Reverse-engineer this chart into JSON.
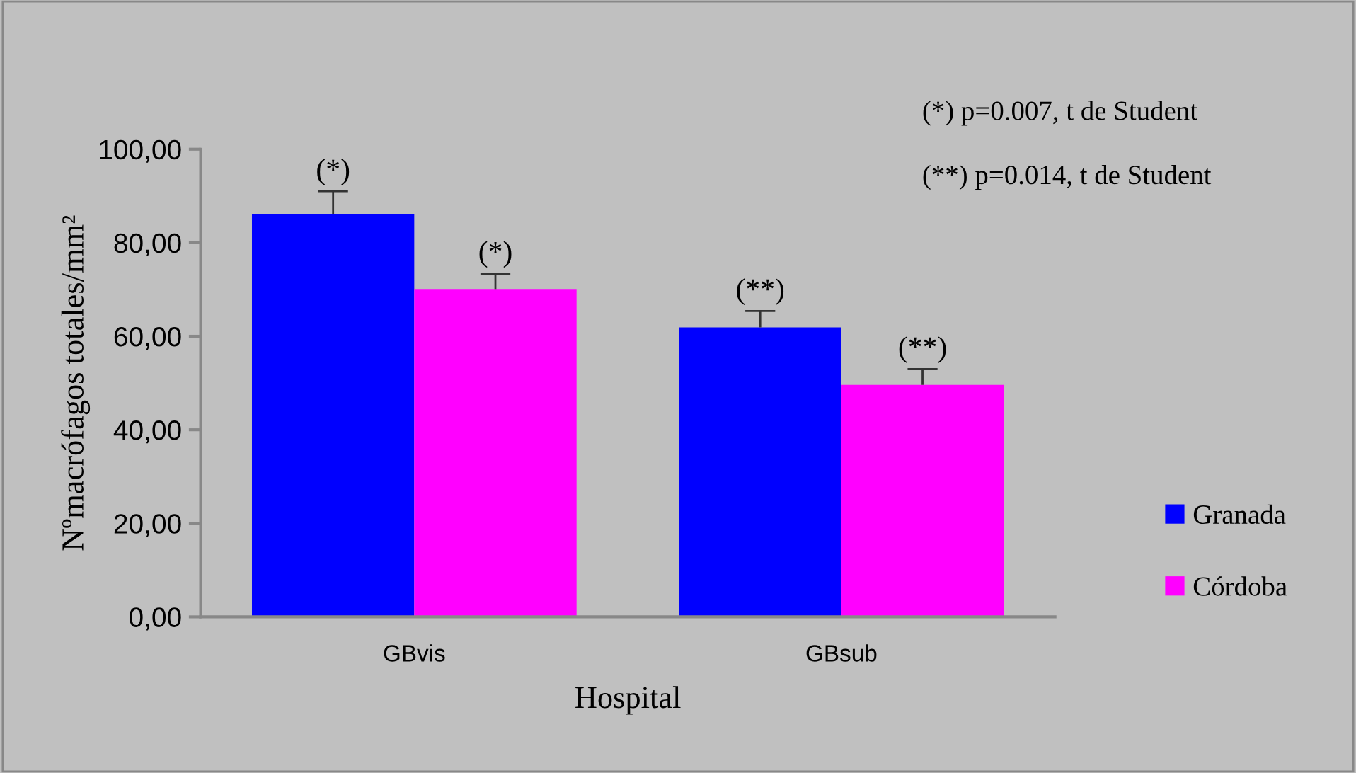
{
  "chart_data": {
    "type": "bar",
    "xlabel": "Hospital",
    "ylabel": "Nºmacrófagos totales/mm²",
    "categories": [
      "GBvis",
      "GBsub"
    ],
    "series": [
      {
        "name": "Granada",
        "color": "#0000ff",
        "values": [
          86.1,
          61.9
        ],
        "errors": [
          [
            86.1,
            91.0
          ],
          [
            61.9,
            65.4
          ]
        ]
      },
      {
        "name": "Córdoba",
        "color": "#ff00ff",
        "values": [
          70.1,
          49.6
        ],
        "errors": [
          [
            70.1,
            73.4
          ],
          [
            49.6,
            53.0
          ]
        ]
      }
    ],
    "ylim": [
      0,
      100
    ],
    "yticks": [
      {
        "value": 0,
        "label": "0,00"
      },
      {
        "value": 20,
        "label": "20,00"
      },
      {
        "value": 40,
        "label": "40,00"
      },
      {
        "value": 60,
        "label": "60,00"
      },
      {
        "value": 80,
        "label": "80,00"
      },
      {
        "value": 100,
        "label": "100,00"
      }
    ],
    "annotations": [
      "(*)",
      "(*)",
      "(**)",
      "(**)",
      "(*) p=0.007, t de Student",
      "(**) p=0.014, t de Student"
    ],
    "grid": false,
    "legend": "right"
  }
}
